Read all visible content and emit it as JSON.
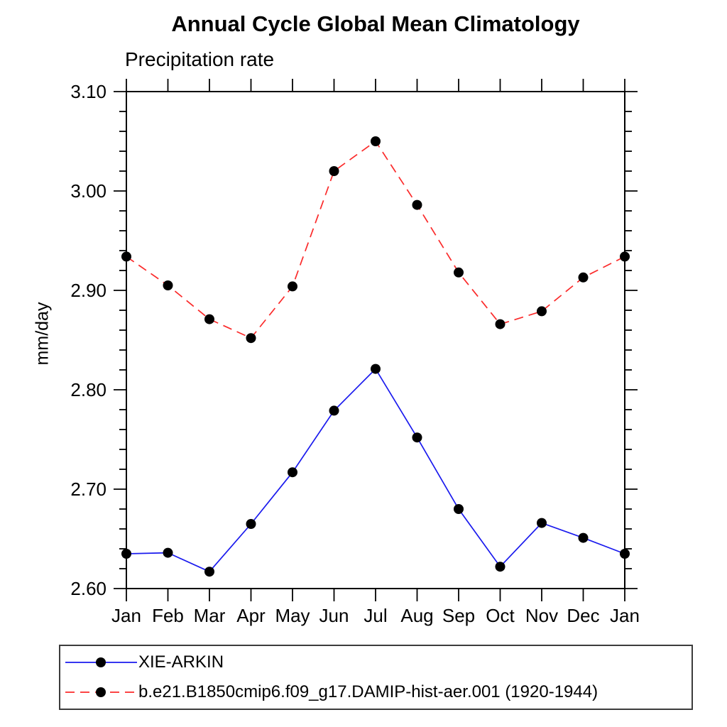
{
  "chart_data": {
    "type": "line",
    "title": "Annual Cycle Global Mean Climatology",
    "subtitle": "Precipitation rate",
    "ylabel": "mm/day",
    "categories": [
      "Jan",
      "Feb",
      "Mar",
      "Apr",
      "May",
      "Jun",
      "Jul",
      "Aug",
      "Sep",
      "Oct",
      "Nov",
      "Dec",
      "Jan"
    ],
    "y_axis": {
      "min": 2.6,
      "max": 3.1,
      "major_step": 0.1,
      "minor_step": 0.02,
      "tick_labels": [
        "2.60",
        "2.70",
        "2.80",
        "2.90",
        "3.00",
        "3.10"
      ]
    },
    "grid": false,
    "legend_position": "bottom-left-box",
    "series": [
      {
        "name": "XIE-ARKIN",
        "color": "#1a1aee",
        "line_style": "solid",
        "marker": "filled-circle",
        "marker_color": "#000000",
        "values": [
          2.635,
          2.636,
          2.617,
          2.665,
          2.717,
          2.779,
          2.821,
          2.752,
          2.68,
          2.622,
          2.666,
          2.651,
          2.635
        ]
      },
      {
        "name": "b.e21.B1850cmip6.f09_g17.DAMIP-hist-aer.001 (1920-1944)",
        "color": "#fb2b2b",
        "line_style": "dashed",
        "marker": "filled-circle",
        "marker_color": "#000000",
        "values": [
          2.934,
          2.905,
          2.871,
          2.852,
          2.904,
          3.02,
          3.05,
          2.986,
          2.918,
          2.866,
          2.879,
          2.913,
          2.934
        ]
      }
    ],
    "colors": {
      "axis": "#000000",
      "background": "#ffffff",
      "text": "#000000"
    }
  }
}
